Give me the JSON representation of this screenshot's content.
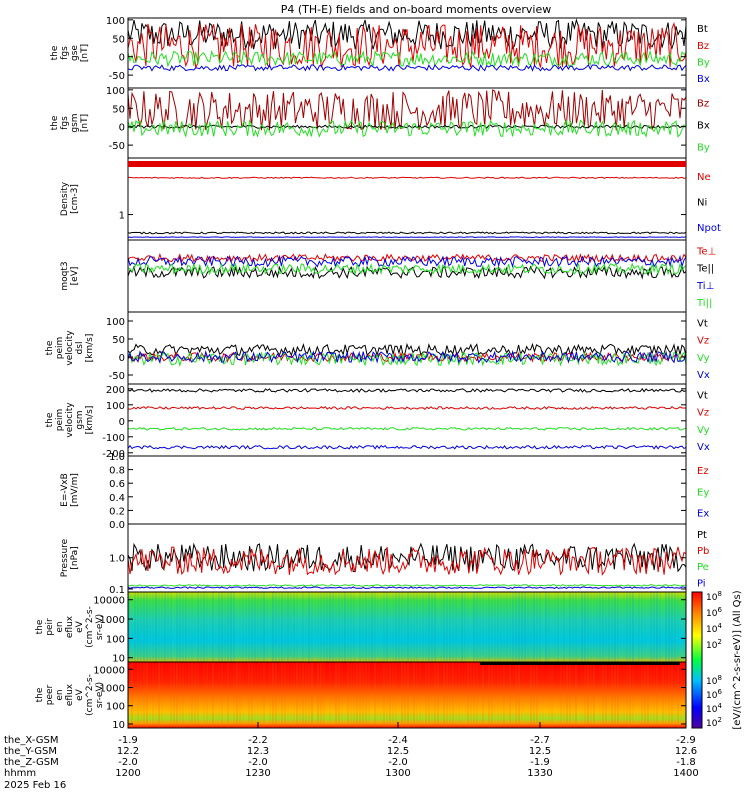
{
  "title": "P4 (TH-E) fields and on-board moments overview",
  "colors": {
    "black": "#000000",
    "red": "#e00000",
    "green": "#20e020",
    "blue": "#0000e0",
    "darkred": "#a00000"
  },
  "chart_data": [
    {
      "type": "line",
      "panel": "fgs_gse",
      "ylabel": [
        "the",
        "fgs",
        "gse",
        "[nT]"
      ],
      "ylim": [
        -85,
        105
      ],
      "yticks": [
        "100",
        "50",
        "0",
        "-50"
      ],
      "ytick_values": [
        100,
        50,
        0,
        -50
      ],
      "series": [
        {
          "name": "Bt",
          "color": "black",
          "level": 60,
          "amp": 40
        },
        {
          "name": "Bz",
          "color": "red",
          "level": 30,
          "amp": 60
        },
        {
          "name": "By",
          "color": "green",
          "level": -5,
          "amp": 20
        },
        {
          "name": "Bx",
          "color": "blue",
          "level": -30,
          "amp": 8
        }
      ]
    },
    {
      "type": "line",
      "panel": "fgs_gsm",
      "ylabel": [
        "the",
        "fgs",
        "gsm",
        "[nT]"
      ],
      "ylim": [
        -85,
        105
      ],
      "yticks": [
        "100",
        "50",
        "0",
        "-50"
      ],
      "ytick_values": [
        100,
        50,
        0,
        -50
      ],
      "series": [
        {
          "name": "Bz",
          "color": "darkred",
          "level": 45,
          "amp": 55
        },
        {
          "name": "Bx",
          "color": "black",
          "level": 0,
          "amp": 4
        },
        {
          "name": "By",
          "color": "green",
          "level": -5,
          "amp": 22
        }
      ]
    },
    {
      "type": "line",
      "panel": "density",
      "ylabel": [
        "Density",
        "[cm-3]"
      ],
      "ylim": [
        0.1,
        3
      ],
      "yticks": [
        "1"
      ],
      "ytick_values": [
        1
      ],
      "series": [
        {
          "name": "Ne",
          "color": "red",
          "level": 2.3,
          "amp": 0.02
        },
        {
          "name": "Ni",
          "color": "black",
          "level": 0.35,
          "amp": 0.03
        },
        {
          "name": "Npot",
          "color": "blue",
          "level": 0.2,
          "amp": 0.01
        }
      ]
    },
    {
      "type": "line",
      "panel": "temperature",
      "ylabel": [
        "moqt3",
        "[eV]"
      ],
      "ylim": [
        0,
        1
      ],
      "yticks": [],
      "ytick_values": [],
      "series": [
        {
          "name": "Te⊥",
          "color": "red",
          "level": 0.75,
          "amp": 0.05
        },
        {
          "name": "Te||",
          "color": "black",
          "level": 0.55,
          "amp": 0.08
        },
        {
          "name": "Ti⊥",
          "color": "blue",
          "level": 0.7,
          "amp": 0.07
        },
        {
          "name": "Ti||",
          "color": "green",
          "level": 0.6,
          "amp": 0.07
        }
      ]
    },
    {
      "type": "line",
      "panel": "peim_velocity_dsl",
      "ylabel": [
        "the",
        "peim",
        "velocity",
        "dsl",
        "[km/s]"
      ],
      "ylim": [
        -75,
        125
      ],
      "yticks": [
        "100",
        "50",
        "0",
        "-50"
      ],
      "ytick_values": [
        100,
        50,
        0,
        -50
      ],
      "series": [
        {
          "name": "Vt",
          "color": "black",
          "level": 20,
          "amp": 15
        },
        {
          "name": "Vz",
          "color": "red",
          "level": 0,
          "amp": 12
        },
        {
          "name": "Vy",
          "color": "green",
          "level": -5,
          "amp": 18
        },
        {
          "name": "Vx",
          "color": "blue",
          "level": 0,
          "amp": 15
        }
      ]
    },
    {
      "type": "line",
      "panel": "peim_velocity_gsm",
      "ylabel": [
        "the",
        "peim",
        "velocity",
        "gsm",
        "[km/s]"
      ],
      "ylim": [
        -220,
        230
      ],
      "yticks": [
        "200",
        "100",
        "0",
        "-100",
        "-200"
      ],
      "ytick_values": [
        200,
        100,
        0,
        -100,
        -200
      ],
      "series": [
        {
          "name": "Vt",
          "color": "black",
          "level": 190,
          "amp": 10
        },
        {
          "name": "Vz",
          "color": "red",
          "level": 80,
          "amp": 8
        },
        {
          "name": "Vy",
          "color": "green",
          "level": -50,
          "amp": 8
        },
        {
          "name": "Vx",
          "color": "blue",
          "level": -165,
          "amp": 10
        }
      ]
    },
    {
      "type": "line",
      "panel": "efield",
      "ylabel": [
        "E=-VxB",
        "[mV/m]"
      ],
      "ylim": [
        0,
        1
      ],
      "yticks": [
        "1.0",
        "0.8",
        "0.6",
        "0.4",
        "0.2",
        "0.0"
      ],
      "ytick_values": [
        1,
        0.8,
        0.6,
        0.4,
        0.2,
        0
      ],
      "series": [
        {
          "name": "Ez",
          "color": "red"
        },
        {
          "name": "Ey",
          "color": "green"
        },
        {
          "name": "Ex",
          "color": "blue"
        }
      ]
    },
    {
      "type": "line",
      "panel": "pressure",
      "ylabel": [
        "Pressure",
        "[nPa]"
      ],
      "ylim": [
        0.08,
        12
      ],
      "yscale": "log",
      "yticks": [
        "1.0",
        "0.1"
      ],
      "ytick_values": [
        1,
        0.1
      ],
      "series": [
        {
          "name": "Pt",
          "color": "black",
          "level": 1.0,
          "amp": 1.0
        },
        {
          "name": "Pb",
          "color": "red",
          "level": 0.8,
          "amp": 0.8
        },
        {
          "name": "Pe",
          "color": "green",
          "level": 0.13,
          "amp": 0.01
        },
        {
          "name": "Pi",
          "color": "blue",
          "level": 0.11,
          "amp": 0.01
        }
      ]
    },
    {
      "type": "heatmap",
      "panel": "peir_en_eflux",
      "ylabel": [
        "the",
        "peir",
        "en",
        "eflux",
        "eV",
        "(cm^2-s-",
        "sr-eV)"
      ],
      "yscale": "log",
      "yticks": [
        "10000",
        "1000",
        "100",
        "10"
      ],
      "ytick_values": [
        10000,
        1000,
        100,
        10
      ]
    },
    {
      "type": "heatmap",
      "panel": "peer_en_eflux",
      "ylabel": [
        "the",
        "peer",
        "en",
        "eflux",
        "eV",
        "(cm^2-s-",
        "sr-eV)"
      ],
      "yscale": "log",
      "yticks": [
        "10000",
        "1000",
        "100",
        "10"
      ],
      "ytick_values": [
        10000,
        1000,
        100,
        10
      ]
    }
  ],
  "colorbar": {
    "label": "[eV/(cm^2-s-sr-eV)] (All Qs)",
    "ticks": [
      "10^8",
      "10^6",
      "10^4",
      "10^2"
    ],
    "ticks_lower": [
      "10^8",
      "10^6",
      "10^4",
      "10^2"
    ]
  },
  "x_axis": {
    "row_labels": [
      "the_X-GSM",
      "the_Y-GSM",
      "the_Z-GSM",
      "hhmm",
      "2025 Feb 16"
    ],
    "ticks": [
      {
        "x": "-1.9",
        "y": "12.2",
        "z": "-2.0",
        "t": "1200"
      },
      {
        "x": "-2.2",
        "y": "12.3",
        "z": "-2.0",
        "t": "1230"
      },
      {
        "x": "-2.4",
        "y": "12.5",
        "z": "-2.0",
        "t": "1300"
      },
      {
        "x": "-2.7",
        "y": "12.5",
        "z": "-1.9",
        "t": "1330"
      },
      {
        "x": "-2.9",
        "y": "12.6",
        "z": "-1.8",
        "t": "1400"
      }
    ]
  }
}
